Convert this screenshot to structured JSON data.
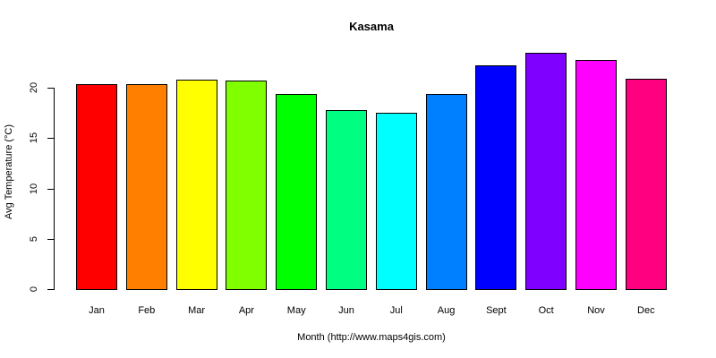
{
  "chart_data": {
    "type": "bar",
    "title": "Kasama",
    "xlabel": "Month (http://www.maps4gis.com)",
    "ylabel": "Avg Temperature (°C)",
    "categories": [
      "Jan",
      "Feb",
      "Mar",
      "Apr",
      "May",
      "Jun",
      "Jul",
      "Aug",
      "Sept",
      "Oct",
      "Nov",
      "Dec"
    ],
    "values": [
      20.4,
      20.4,
      20.8,
      20.7,
      19.4,
      17.8,
      17.5,
      19.4,
      22.2,
      23.5,
      22.8,
      20.9
    ],
    "colors": [
      "#FF0000",
      "#FF8000",
      "#FFFF00",
      "#80FF00",
      "#00FF00",
      "#00FF80",
      "#00FFFF",
      "#0080FF",
      "#0000FF",
      "#8000FF",
      "#FF00FF",
      "#FF0080"
    ],
    "ylim": [
      0,
      24
    ],
    "yticks": [
      0,
      5,
      10,
      15,
      20
    ],
    "grid": false,
    "legend": null
  },
  "labels": {
    "title": "Kasama",
    "xlabel": "Month (http://www.maps4gis.com)",
    "ylabel": "Avg Temperature (°C)",
    "yticks": [
      "0",
      "5",
      "10",
      "15",
      "20"
    ],
    "months": [
      "Jan",
      "Feb",
      "Mar",
      "Apr",
      "May",
      "Jun",
      "Jul",
      "Aug",
      "Sept",
      "Oct",
      "Nov",
      "Dec"
    ]
  }
}
